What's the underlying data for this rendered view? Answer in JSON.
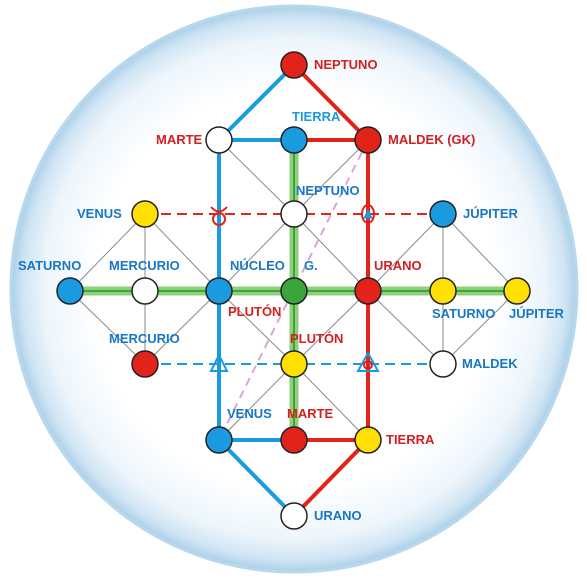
{
  "colors": {
    "red": "#e2231a",
    "blue": "#1a9be0",
    "green": "#3aa53a",
    "green_band": "#8fcf7a",
    "yellow": "#ffe000",
    "white": "#ffffff",
    "pink_dash": "#d9a6d6",
    "gray_line": "#8a8a8a",
    "sphere_edge": "#a8cfe8",
    "label_red": "#d41f1f",
    "label_blue": "#1877c4"
  },
  "labels": {
    "neptuno_top": "NEPTUNO",
    "tierra_top": "TIERRA",
    "marte_top": "MARTE",
    "maldek_gk": "MALDEK (GK)",
    "neptuno_mid": "NEPTUNO",
    "venus_left": "VENUS",
    "jupiter_right": "JÚPITER",
    "saturno_left": "SATURNO",
    "mercurio_upper": "MERCURIO",
    "nucleo": "NÚCLEO",
    "g": "G.",
    "urano_mid": "URANO",
    "saturno_right": "SATURNO",
    "jupiter_far": "JÚPITER",
    "pluton_left": "PLUTÓN",
    "mercurio_lower": "MERCURIO",
    "pluton_right": "PLUTÓN",
    "maldek": "MALDEK",
    "venus_bottom": "VENUS",
    "marte_bottom": "MARTE",
    "tierra_bottom": "TIERRA",
    "urano_bottom": "URANO"
  },
  "nodes": [
    {
      "id": "neptuno-top",
      "color": "red"
    },
    {
      "id": "marte-top",
      "color": "white"
    },
    {
      "id": "tierra-top",
      "color": "blue"
    },
    {
      "id": "maldek-gk",
      "color": "red"
    },
    {
      "id": "venus-left",
      "color": "yellow"
    },
    {
      "id": "neptuno-mid",
      "color": "white"
    },
    {
      "id": "jupiter-right",
      "color": "blue"
    },
    {
      "id": "saturno-left",
      "color": "blue"
    },
    {
      "id": "mercurio-upper",
      "color": "white"
    },
    {
      "id": "nucleo",
      "color": "blue"
    },
    {
      "id": "g",
      "color": "green"
    },
    {
      "id": "urano-mid",
      "color": "red"
    },
    {
      "id": "saturno-right",
      "color": "yellow"
    },
    {
      "id": "jupiter-far",
      "color": "yellow"
    },
    {
      "id": "mercurio-lower",
      "color": "red"
    },
    {
      "id": "pluton",
      "color": "yellow"
    },
    {
      "id": "maldek",
      "color": "white"
    },
    {
      "id": "venus-bottom",
      "color": "blue"
    },
    {
      "id": "marte-bottom",
      "color": "red"
    },
    {
      "id": "tierra-bottom",
      "color": "yellow"
    },
    {
      "id": "urano-bottom",
      "color": "white"
    }
  ]
}
